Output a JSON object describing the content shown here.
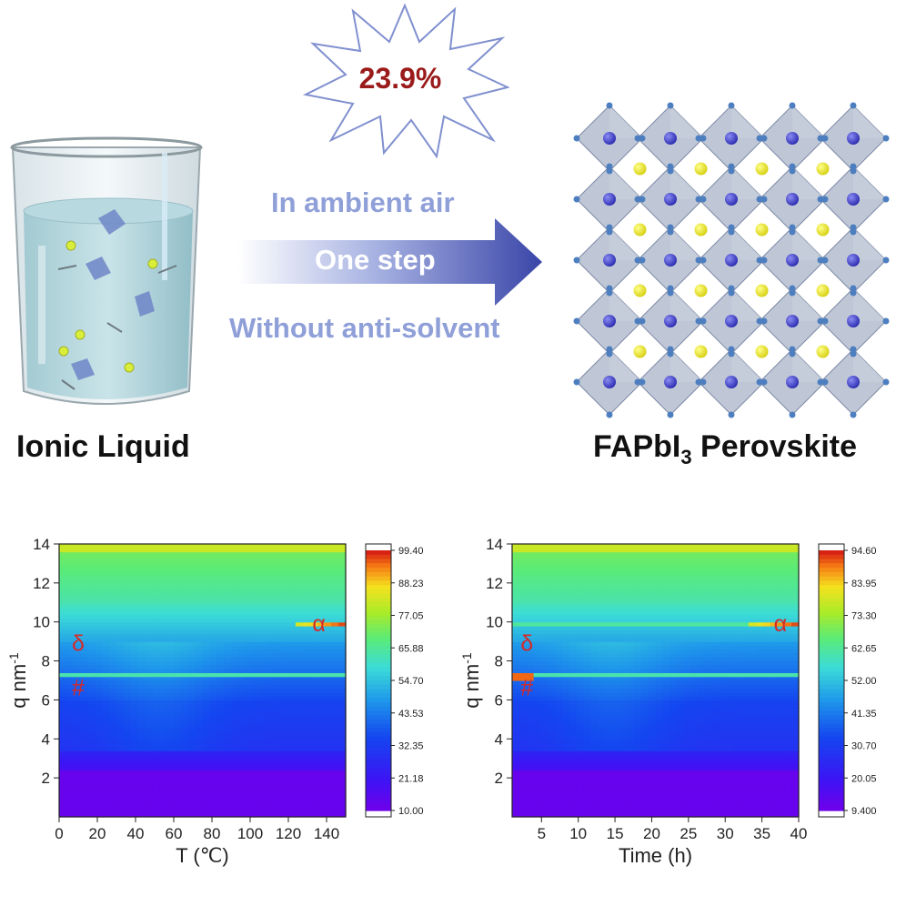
{
  "top": {
    "burst_text": "23.9%",
    "conditions": [
      "In ambient air",
      "One step",
      "Without anti-solvent"
    ],
    "left_label": "Ionic Liquid",
    "right_label_main": "FAPbI",
    "right_label_sub": "3",
    "right_label_tail": " Perovskite"
  },
  "colors": {
    "burst_text": "#9b1b1b",
    "condition_text": "#8f9fd8",
    "arrow": "#4451b0",
    "annotation": "#d42a2a"
  },
  "chart_data": [
    {
      "type": "heatmap",
      "xlabel": "T (℃)",
      "ylabel": "q nm-1",
      "x_ticks": [
        0,
        20,
        40,
        60,
        80,
        100,
        120,
        140
      ],
      "y_ticks": [
        2,
        4,
        6,
        8,
        10,
        12,
        14
      ],
      "xlim": [
        0,
        150
      ],
      "ylim": [
        0,
        14
      ],
      "colorbar_ticks": [
        "99.40",
        "88.23",
        "77.05",
        "65.88",
        "54.70",
        "43.53",
        "32.35",
        "21.18",
        "10.00"
      ],
      "annotations": [
        {
          "text": "α",
          "x": 136,
          "y": 9.9
        },
        {
          "text": "δ",
          "x": 10,
          "y": 8.9
        },
        {
          "text": "#",
          "x": 10,
          "y": 6.6
        }
      ]
    },
    {
      "type": "heatmap",
      "xlabel": "Time (h)",
      "ylabel": "q nm-1",
      "x_ticks": [
        5,
        10,
        15,
        20,
        25,
        30,
        35,
        40
      ],
      "y_ticks": [
        2,
        4,
        6,
        8,
        10,
        12,
        14
      ],
      "xlim": [
        1,
        40
      ],
      "ylim": [
        0,
        14
      ],
      "colorbar_ticks": [
        "94.60",
        "83.95",
        "73.30",
        "62.65",
        "52.00",
        "41.35",
        "30.70",
        "20.05",
        "9.400"
      ],
      "annotations": [
        {
          "text": "α",
          "x": 37.5,
          "y": 9.9
        },
        {
          "text": "δ",
          "x": 3,
          "y": 8.9
        },
        {
          "text": "#",
          "x": 3,
          "y": 6.6
        }
      ]
    }
  ]
}
